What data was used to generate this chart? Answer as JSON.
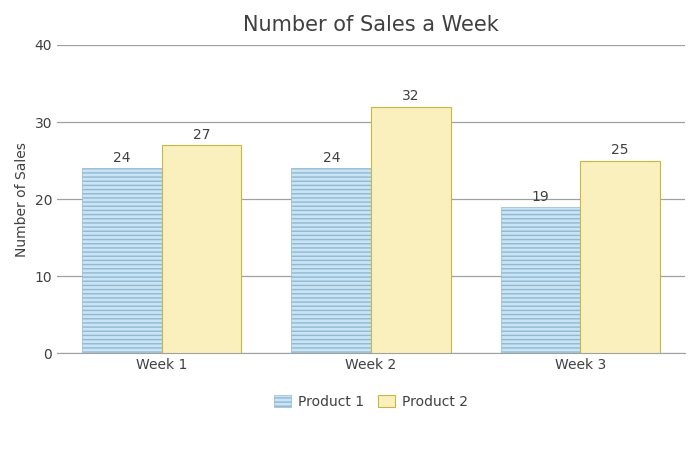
{
  "title": "Number of Sales a Week",
  "ylabel": "Number of Sales",
  "categories": [
    "Week 1",
    "Week 2",
    "Week 3"
  ],
  "product1_values": [
    24,
    24,
    19
  ],
  "product2_values": [
    27,
    32,
    25
  ],
  "product1_face_color": "#C8E4F5",
  "product1_hatch_color": "#A8C8E0",
  "product1_hatch": "----",
  "product2_color": "#FAF0BE",
  "product2_edge_color": "#C8B840",
  "product1_edge_color": "#90B8D0",
  "ylim": [
    0,
    40
  ],
  "yticks": [
    0,
    10,
    20,
    30,
    40
  ],
  "bar_width": 0.38,
  "legend_labels": [
    "Product 1",
    "Product 2"
  ],
  "title_fontsize": 15,
  "label_fontsize": 10,
  "tick_fontsize": 10,
  "annotation_fontsize": 10,
  "background_color": "#ffffff",
  "grid_color": "#A0A0A0",
  "text_color": "#404040"
}
